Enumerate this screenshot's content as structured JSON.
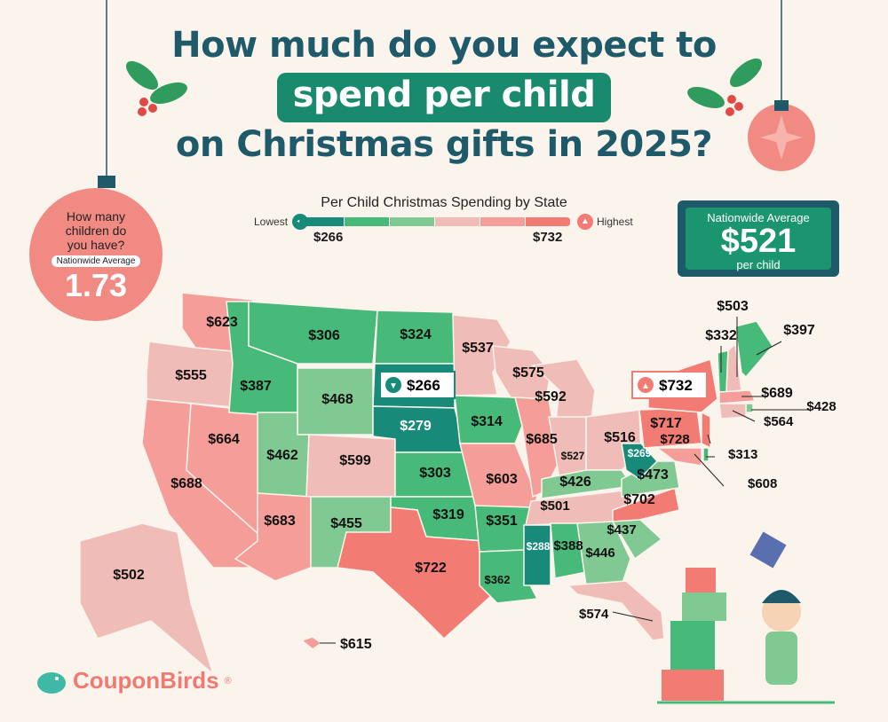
{
  "title": {
    "line1": "How much do you expect to",
    "line2": "spend per child",
    "line3": "on Christmas gifts in 2025?"
  },
  "legend": {
    "title": "Per Child Christmas Spending by State",
    "lowest_label": "Lowest",
    "highest_label": "Highest",
    "min": "$266",
    "max": "$732",
    "tier_colors": [
      "#178a7a",
      "#47b978",
      "#80c993",
      "#f0bcb8",
      "#f59d98",
      "#f27b74"
    ]
  },
  "nationwide": {
    "label": "Nationwide Average",
    "value": "$521",
    "unit": "per child"
  },
  "children": {
    "question": "How many children do you have?",
    "label": "Nationwide Average",
    "value": "1.73"
  },
  "callouts": {
    "lowest": "$266",
    "highest": "$732"
  },
  "states": {
    "WA": {
      "value": "$623",
      "tier": 4
    },
    "OR": {
      "value": "$555",
      "tier": 3
    },
    "CA": {
      "value": "$688",
      "tier": 4
    },
    "NV": {
      "value": "$664",
      "tier": 4
    },
    "ID": {
      "value": "$387",
      "tier": 1
    },
    "MT": {
      "value": "$306",
      "tier": 1
    },
    "WY": {
      "value": "$468",
      "tier": 2
    },
    "UT": {
      "value": "$462",
      "tier": 2
    },
    "CO": {
      "value": "$599",
      "tier": 3
    },
    "AZ": {
      "value": "$683",
      "tier": 4
    },
    "NM": {
      "value": "$455",
      "tier": 2
    },
    "ND": {
      "value": "$324",
      "tier": 1
    },
    "SD": {
      "value": "$266",
      "tier": 0
    },
    "NE": {
      "value": "$279",
      "tier": 0
    },
    "KS": {
      "value": "$303",
      "tier": 1
    },
    "OK": {
      "value": "$319",
      "tier": 1
    },
    "TX": {
      "value": "$722",
      "tier": 5
    },
    "MN": {
      "value": "$537",
      "tier": 3
    },
    "IA": {
      "value": "$314",
      "tier": 1
    },
    "MO": {
      "value": "$603",
      "tier": 4
    },
    "AR": {
      "value": "$351",
      "tier": 1
    },
    "LA": {
      "value": "$362",
      "tier": 1
    },
    "WI": {
      "value": "$575",
      "tier": 3
    },
    "IL": {
      "value": "$685",
      "tier": 4
    },
    "MI": {
      "value": "$592",
      "tier": 3
    },
    "IN": {
      "value": "$527",
      "tier": 3
    },
    "OH": {
      "value": "$516",
      "tier": 3
    },
    "KY": {
      "value": "$426",
      "tier": 2
    },
    "TN": {
      "value": "$501",
      "tier": 3
    },
    "MS": {
      "value": "$288",
      "tier": 0
    },
    "AL": {
      "value": "$388",
      "tier": 1
    },
    "GA": {
      "value": "$446",
      "tier": 2
    },
    "FL": {
      "value": "$574",
      "tier": 3
    },
    "SC": {
      "value": "$437",
      "tier": 2
    },
    "NC": {
      "value": "$702",
      "tier": 5
    },
    "VA": {
      "value": "$473",
      "tier": 2
    },
    "WV": {
      "value": "$269",
      "tier": 0
    },
    "PA": {
      "value": "$717",
      "tier": 5
    },
    "NY": {
      "value": "$732",
      "tier": 5
    },
    "VT": {
      "value": "$332",
      "tier": 1
    },
    "NH": {
      "value": "$503",
      "tier": 3
    },
    "ME": {
      "value": "$397",
      "tier": 1
    },
    "MA": {
      "value": "$689",
      "tier": 4
    },
    "RI": {
      "value": "$428",
      "tier": 2
    },
    "CT": {
      "value": "$564",
      "tier": 3
    },
    "NJ": {
      "value": "$728",
      "tier": 5
    },
    "DE": {
      "value": "$313",
      "tier": 1
    },
    "MD": {
      "value": "$608",
      "tier": 4
    },
    "AK": {
      "value": "$502",
      "tier": 3
    },
    "HI": {
      "value": "$615",
      "tier": 4
    }
  },
  "brand": {
    "name": "CouponBirds",
    "mark": "®"
  }
}
